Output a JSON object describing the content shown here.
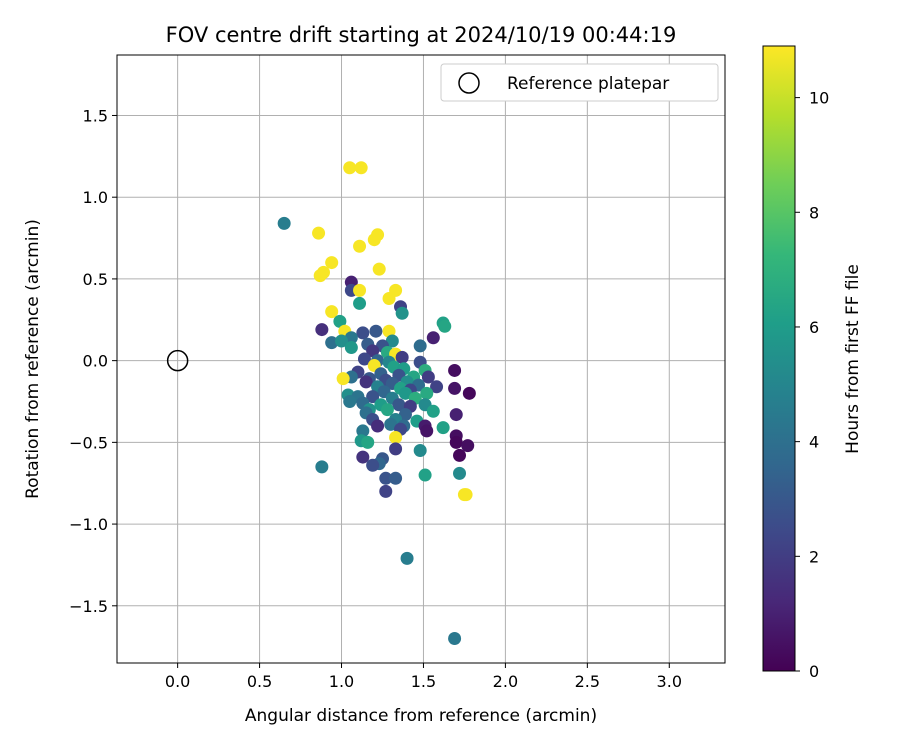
{
  "chart_data": {
    "type": "scatter",
    "title": "FOV centre drift starting at 2024/10/19 00:44:19",
    "xlabel": "Angular distance from reference (arcmin)",
    "ylabel": "Rotation from reference (arcmin)",
    "xlim": [
      -0.37,
      3.34
    ],
    "ylim": [
      -1.85,
      1.87
    ],
    "xticks": [
      0.0,
      0.5,
      1.0,
      1.5,
      2.0,
      2.5,
      3.0
    ],
    "xtick_labels": [
      "0.0",
      "0.5",
      "1.0",
      "1.5",
      "2.0",
      "2.5",
      "3.0"
    ],
    "yticks": [
      -1.5,
      -1.0,
      -0.5,
      0.0,
      0.5,
      1.0,
      1.5
    ],
    "ytick_labels": [
      "−1.5",
      "−1.0",
      "−0.5",
      "0.0",
      "0.5",
      "1.0",
      "1.5"
    ],
    "grid": true,
    "legend": {
      "placement": "top-right",
      "entries": [
        {
          "label": "Reference platepar",
          "marker": "open-circle"
        }
      ]
    },
    "reference_point": {
      "x": 0.0,
      "y": 0.0
    },
    "colorbar": {
      "label": "Hours from first FF file",
      "colormap": "viridis",
      "range": [
        0,
        10.9
      ],
      "ticks": [
        0,
        2,
        4,
        6,
        8,
        10
      ],
      "tick_labels": [
        "0",
        "2",
        "4",
        "6",
        "8",
        "10"
      ]
    },
    "colormap_stops": [
      "#440154",
      "#482878",
      "#3e4989",
      "#31688e",
      "#26828e",
      "#1f9e89",
      "#35b779",
      "#6ece58",
      "#b5de2b",
      "#fde725"
    ],
    "points": [
      {
        "x": 1.05,
        "y": 1.18,
        "c": 10.8
      },
      {
        "x": 1.12,
        "y": 1.18,
        "c": 10.8
      },
      {
        "x": 0.65,
        "y": 0.84,
        "c": 4.6
      },
      {
        "x": 0.86,
        "y": 0.78,
        "c": 10.8
      },
      {
        "x": 1.22,
        "y": 0.77,
        "c": 10.8
      },
      {
        "x": 1.2,
        "y": 0.74,
        "c": 10.8
      },
      {
        "x": 1.11,
        "y": 0.7,
        "c": 10.8
      },
      {
        "x": 0.94,
        "y": 0.6,
        "c": 10.8
      },
      {
        "x": 1.23,
        "y": 0.56,
        "c": 10.8
      },
      {
        "x": 0.89,
        "y": 0.54,
        "c": 10.8
      },
      {
        "x": 0.87,
        "y": 0.52,
        "c": 10.8
      },
      {
        "x": 1.06,
        "y": 0.48,
        "c": 1.0
      },
      {
        "x": 1.06,
        "y": 0.43,
        "c": 2.4
      },
      {
        "x": 1.11,
        "y": 0.43,
        "c": 10.8
      },
      {
        "x": 1.33,
        "y": 0.43,
        "c": 10.8
      },
      {
        "x": 1.29,
        "y": 0.38,
        "c": 10.8
      },
      {
        "x": 1.11,
        "y": 0.35,
        "c": 6.0
      },
      {
        "x": 1.36,
        "y": 0.33,
        "c": 2.2
      },
      {
        "x": 0.94,
        "y": 0.3,
        "c": 10.8
      },
      {
        "x": 1.37,
        "y": 0.29,
        "c": 5.6
      },
      {
        "x": 1.62,
        "y": 0.23,
        "c": 6.2
      },
      {
        "x": 0.99,
        "y": 0.24,
        "c": 6.2
      },
      {
        "x": 1.63,
        "y": 0.21,
        "c": 6.4
      },
      {
        "x": 0.88,
        "y": 0.19,
        "c": 1.5
      },
      {
        "x": 1.02,
        "y": 0.18,
        "c": 10.8
      },
      {
        "x": 1.13,
        "y": 0.17,
        "c": 2.6
      },
      {
        "x": 1.21,
        "y": 0.18,
        "c": 3.0
      },
      {
        "x": 1.29,
        "y": 0.18,
        "c": 10.8
      },
      {
        "x": 1.06,
        "y": 0.14,
        "c": 4.4
      },
      {
        "x": 1.56,
        "y": 0.14,
        "c": 1.0
      },
      {
        "x": 1.31,
        "y": 0.12,
        "c": 5.2
      },
      {
        "x": 0.94,
        "y": 0.11,
        "c": 4.0
      },
      {
        "x": 1.0,
        "y": 0.12,
        "c": 5.4
      },
      {
        "x": 1.16,
        "y": 0.1,
        "c": 3.2
      },
      {
        "x": 1.25,
        "y": 0.09,
        "c": 2.8
      },
      {
        "x": 1.48,
        "y": 0.09,
        "c": 3.8
      },
      {
        "x": 1.06,
        "y": 0.08,
        "c": 5.8
      },
      {
        "x": 1.19,
        "y": 0.06,
        "c": 1.8
      },
      {
        "x": 1.28,
        "y": 0.05,
        "c": 6.6
      },
      {
        "x": 1.33,
        "y": 0.04,
        "c": 10.8
      },
      {
        "x": 1.37,
        "y": 0.02,
        "c": 2.0
      },
      {
        "x": 1.14,
        "y": 0.01,
        "c": 2.4
      },
      {
        "x": 1.22,
        "y": 0.0,
        "c": 3.6
      },
      {
        "x": 1.29,
        "y": -0.01,
        "c": 5.0
      },
      {
        "x": 1.48,
        "y": -0.01,
        "c": 2.6
      },
      {
        "x": 1.2,
        "y": -0.03,
        "c": 10.8
      },
      {
        "x": 1.32,
        "y": -0.04,
        "c": 6.2
      },
      {
        "x": 1.38,
        "y": -0.05,
        "c": 6.0
      },
      {
        "x": 1.51,
        "y": -0.06,
        "c": 6.8
      },
      {
        "x": 1.69,
        "y": -0.06,
        "c": 0.4
      },
      {
        "x": 1.1,
        "y": -0.07,
        "c": 2.2
      },
      {
        "x": 1.24,
        "y": -0.08,
        "c": 3.4
      },
      {
        "x": 1.35,
        "y": -0.09,
        "c": 2.8
      },
      {
        "x": 1.44,
        "y": -0.1,
        "c": 6.4
      },
      {
        "x": 1.53,
        "y": -0.1,
        "c": 2.0
      },
      {
        "x": 1.06,
        "y": -0.1,
        "c": 4.0
      },
      {
        "x": 1.01,
        "y": -0.11,
        "c": 10.8
      },
      {
        "x": 1.17,
        "y": -0.11,
        "c": 3.0
      },
      {
        "x": 1.27,
        "y": -0.12,
        "c": 2.6
      },
      {
        "x": 1.4,
        "y": -0.13,
        "c": 5.4
      },
      {
        "x": 1.15,
        "y": -0.13,
        "c": 1.6
      },
      {
        "x": 1.31,
        "y": -0.14,
        "c": 3.2
      },
      {
        "x": 1.47,
        "y": -0.15,
        "c": 3.8
      },
      {
        "x": 1.58,
        "y": -0.16,
        "c": 2.2
      },
      {
        "x": 1.22,
        "y": -0.16,
        "c": 4.8
      },
      {
        "x": 1.36,
        "y": -0.17,
        "c": 6.2
      },
      {
        "x": 1.42,
        "y": -0.18,
        "c": 2.4
      },
      {
        "x": 1.69,
        "y": -0.17,
        "c": 0.6
      },
      {
        "x": 1.26,
        "y": -0.19,
        "c": 3.6
      },
      {
        "x": 1.39,
        "y": -0.2,
        "c": 5.8
      },
      {
        "x": 1.52,
        "y": -0.2,
        "c": 6.6
      },
      {
        "x": 1.78,
        "y": -0.2,
        "c": 0.2
      },
      {
        "x": 1.04,
        "y": -0.21,
        "c": 5.4
      },
      {
        "x": 1.1,
        "y": -0.22,
        "c": 4.2
      },
      {
        "x": 1.19,
        "y": -0.22,
        "c": 2.8
      },
      {
        "x": 1.31,
        "y": -0.23,
        "c": 4.6
      },
      {
        "x": 1.45,
        "y": -0.23,
        "c": 6.8
      },
      {
        "x": 1.05,
        "y": -0.25,
        "c": 4.4
      },
      {
        "x": 1.13,
        "y": -0.26,
        "c": 3.8
      },
      {
        "x": 1.24,
        "y": -0.27,
        "c": 6.0
      },
      {
        "x": 1.35,
        "y": -0.27,
        "c": 3.0
      },
      {
        "x": 1.42,
        "y": -0.28,
        "c": 2.0
      },
      {
        "x": 1.51,
        "y": -0.27,
        "c": 5.2
      },
      {
        "x": 1.17,
        "y": -0.3,
        "c": 5.6
      },
      {
        "x": 1.28,
        "y": -0.3,
        "c": 6.4
      },
      {
        "x": 1.56,
        "y": -0.31,
        "c": 6.2
      },
      {
        "x": 1.15,
        "y": -0.32,
        "c": 4.0
      },
      {
        "x": 1.39,
        "y": -0.33,
        "c": 3.4
      },
      {
        "x": 1.7,
        "y": -0.33,
        "c": 1.0
      },
      {
        "x": 1.19,
        "y": -0.36,
        "c": 2.6
      },
      {
        "x": 1.33,
        "y": -0.36,
        "c": 4.8
      },
      {
        "x": 1.46,
        "y": -0.37,
        "c": 6.0
      },
      {
        "x": 1.3,
        "y": -0.39,
        "c": 4.2
      },
      {
        "x": 1.22,
        "y": -0.4,
        "c": 1.4
      },
      {
        "x": 1.38,
        "y": -0.4,
        "c": 3.8
      },
      {
        "x": 1.51,
        "y": -0.4,
        "c": 0.8
      },
      {
        "x": 1.62,
        "y": -0.41,
        "c": 6.2
      },
      {
        "x": 1.13,
        "y": -0.43,
        "c": 4.4
      },
      {
        "x": 1.36,
        "y": -0.42,
        "c": 2.4
      },
      {
        "x": 1.52,
        "y": -0.43,
        "c": 0.6
      },
      {
        "x": 1.7,
        "y": -0.46,
        "c": 0.4
      },
      {
        "x": 1.33,
        "y": -0.47,
        "c": 10.8
      },
      {
        "x": 1.12,
        "y": -0.49,
        "c": 5.8
      },
      {
        "x": 1.16,
        "y": -0.5,
        "c": 6.4
      },
      {
        "x": 1.7,
        "y": -0.5,
        "c": 0.2
      },
      {
        "x": 1.77,
        "y": -0.52,
        "c": 0.4
      },
      {
        "x": 1.33,
        "y": -0.54,
        "c": 2.0
      },
      {
        "x": 1.48,
        "y": -0.55,
        "c": 5.2
      },
      {
        "x": 1.72,
        "y": -0.58,
        "c": 0.2
      },
      {
        "x": 1.13,
        "y": -0.59,
        "c": 1.6
      },
      {
        "x": 1.25,
        "y": -0.6,
        "c": 3.0
      },
      {
        "x": 1.23,
        "y": -0.63,
        "c": 3.6
      },
      {
        "x": 1.19,
        "y": -0.64,
        "c": 2.6
      },
      {
        "x": 0.88,
        "y": -0.65,
        "c": 4.6
      },
      {
        "x": 1.72,
        "y": -0.69,
        "c": 5.2
      },
      {
        "x": 1.51,
        "y": -0.7,
        "c": 6.2
      },
      {
        "x": 1.27,
        "y": -0.72,
        "c": 2.8
      },
      {
        "x": 1.33,
        "y": -0.72,
        "c": 3.2
      },
      {
        "x": 1.27,
        "y": -0.8,
        "c": 2.2
      },
      {
        "x": 1.75,
        "y": -0.82,
        "c": 10.8
      },
      {
        "x": 1.76,
        "y": -0.82,
        "c": 10.8
      },
      {
        "x": 1.4,
        "y": -1.21,
        "c": 4.6
      },
      {
        "x": 1.69,
        "y": -1.7,
        "c": 4.4
      }
    ]
  }
}
